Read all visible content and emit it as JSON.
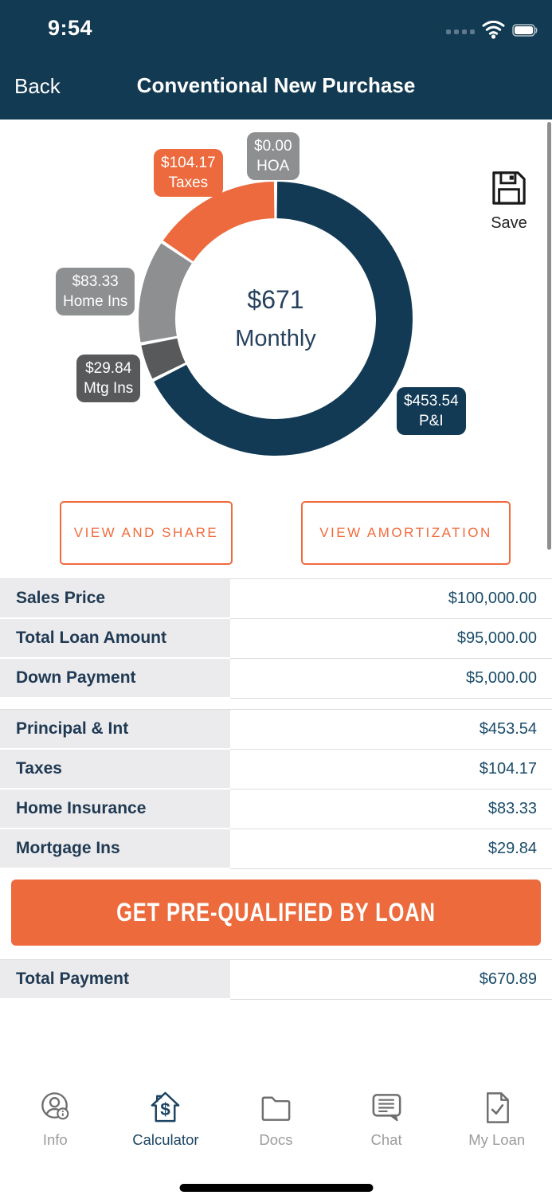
{
  "status_bar": {
    "time": "9:54"
  },
  "nav": {
    "back_label": "Back",
    "title": "Conventional New Purchase"
  },
  "save": {
    "label": "Save"
  },
  "chart_data": {
    "type": "pie",
    "donut": true,
    "title": "Monthly payment breakdown",
    "center": {
      "value": "$671",
      "label": "Monthly"
    },
    "series": [
      {
        "name": "P&I",
        "value": 453.54,
        "label": "$453.54",
        "color": "#123A55"
      },
      {
        "name": "Mtg Ins",
        "value": 29.84,
        "label": "$29.84",
        "color": "#58595B"
      },
      {
        "name": "Home Ins",
        "value": 83.33,
        "label": "$83.33",
        "color": "#8E8F90"
      },
      {
        "name": "Taxes",
        "value": 104.17,
        "label": "$104.17",
        "color": "#EC6A3D"
      },
      {
        "name": "HOA",
        "value": 0,
        "label": "$0.00",
        "color": "#8E8F90"
      }
    ],
    "legend_position": "callout-badges",
    "start_angle_deg": 0,
    "direction": "clockwise"
  },
  "actions": {
    "view_share": "VIEW AND SHARE",
    "view_amortization": "VIEW AMORTIZATION",
    "prequalify": "GET PRE-QUALIFIED BY LOAN"
  },
  "table": {
    "group1": [
      {
        "label": "Sales Price",
        "value": "$100,000.00"
      },
      {
        "label": "Total Loan Amount",
        "value": "$95,000.00"
      },
      {
        "label": "Down Payment",
        "value": "$5,000.00"
      }
    ],
    "group2": [
      {
        "label": "Principal & Int",
        "value": "$453.54"
      },
      {
        "label": "Taxes",
        "value": "$104.17"
      },
      {
        "label": "Home Insurance",
        "value": "$83.33"
      },
      {
        "label": "Mortgage Ins",
        "value": "$29.84"
      }
    ],
    "total": {
      "label": "Total Payment",
      "value": "$670.89"
    }
  },
  "tab_bar": [
    {
      "label": "Info",
      "icon": "person-info-icon",
      "active": false
    },
    {
      "label": "Calculator",
      "icon": "house-dollar-icon",
      "active": true
    },
    {
      "label": "Docs",
      "icon": "folder-icon",
      "active": false
    },
    {
      "label": "Chat",
      "icon": "chat-bubble-icon",
      "active": false
    },
    {
      "label": "My Loan",
      "icon": "document-check-icon",
      "active": false
    }
  ],
  "colors": {
    "header_navy": "#123A52",
    "accent_orange": "#EC6A3B",
    "table_label_bg": "#EBEBED",
    "value_text": "#1A4B68"
  }
}
